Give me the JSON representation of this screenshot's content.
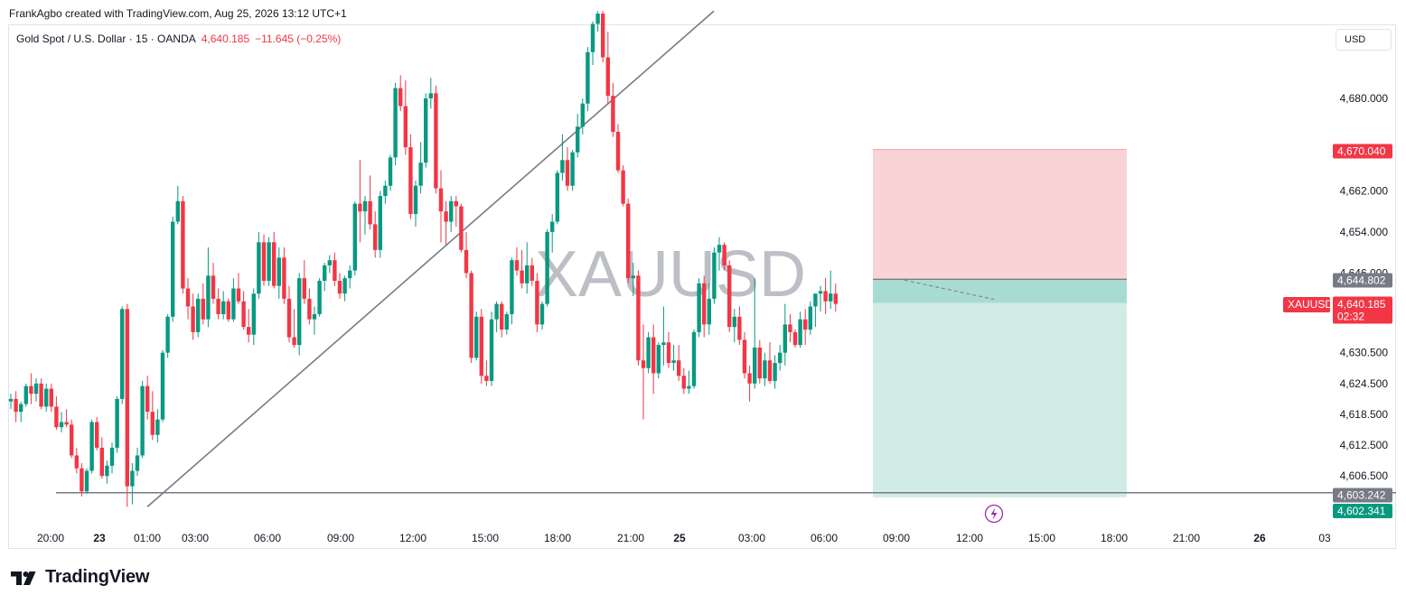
{
  "header": {
    "credit": "FrankAgbo created with TradingView.com, Aug 25, 2026 13:12 UTC+1",
    "symbol": "Gold Spot / U.S. Dollar · 15 · OANDA",
    "last_price": "4,640.185",
    "change": "−11.645 (−0.25%)"
  },
  "currency_button": "USD",
  "watermark": "XAUUSD",
  "brand": "TradingView",
  "colors": {
    "up": "#089981",
    "down": "#f23645",
    "stop_zone": "#f9d3d6",
    "target_zone": "#d1ece6",
    "entry_zone": "#a8dcd1",
    "line": "#787b86"
  },
  "price_labels": {
    "stop": "4,670.040",
    "entry": "4,644.802",
    "current": "4,640.185",
    "countdown": "02:32",
    "symbol_tag": "XAUUSD",
    "support": "4,603.242",
    "target": "4,602.341"
  },
  "chart_data": {
    "type": "candlestick",
    "y_ticks": [
      "4,680.000",
      "4,662.000",
      "4,654.000",
      "4,646.000",
      "4,630.500",
      "4,624.500",
      "4,618.500",
      "4,612.500",
      "4,606.500"
    ],
    "x_ticks": [
      "20:00",
      "23",
      "01:00",
      "03:00",
      "06:00",
      "09:00",
      "12:00",
      "15:00",
      "18:00",
      "21:00",
      "25",
      "03:00",
      "06:00",
      "09:00",
      "12:00",
      "15:00",
      "18:00",
      "21:00",
      "26",
      "03"
    ],
    "bold_x_ticks": [
      "23",
      "25",
      "26"
    ],
    "position": {
      "side": "short",
      "stop": 4670.04,
      "entry": 4644.802,
      "target": 4602.341
    },
    "support_level": 4603.242,
    "trendline": {
      "from": 4600.5,
      "to": 4697.0
    },
    "candles": [
      [
        4621.0,
        4622.5,
        4619.5,
        4621.5
      ],
      [
        4621.5,
        4623.0,
        4617.0,
        4619.0
      ],
      [
        4619.0,
        4621.0,
        4617.0,
        4620.5
      ],
      [
        4620.5,
        4624.5,
        4620.0,
        4624.0
      ],
      [
        4624.0,
        4626.5,
        4620.5,
        4622.5
      ],
      [
        4622.5,
        4625.5,
        4621.0,
        4624.5
      ],
      [
        4624.5,
        4625.5,
        4619.5,
        4620.0
      ],
      [
        4620.0,
        4624.5,
        4619.0,
        4623.5
      ],
      [
        4623.5,
        4624.5,
        4619.0,
        4620.0
      ],
      [
        4620.0,
        4622.0,
        4615.5,
        4616.0
      ],
      [
        4616.0,
        4619.0,
        4615.0,
        4617.0
      ],
      [
        4617.0,
        4619.5,
        4616.0,
        4616.5
      ],
      [
        4616.5,
        4617.5,
        4610.0,
        4610.5
      ],
      [
        4610.5,
        4612.0,
        4607.0,
        4608.0
      ],
      [
        4608.0,
        4609.0,
        4602.5,
        4603.5
      ],
      [
        4603.5,
        4608.0,
        4603.0,
        4607.5
      ],
      [
        4607.5,
        4617.5,
        4607.0,
        4617.0
      ],
      [
        4617.0,
        4618.0,
        4611.5,
        4612.0
      ],
      [
        4612.0,
        4614.0,
        4606.0,
        4606.5
      ],
      [
        4606.5,
        4609.5,
        4605.0,
        4608.5
      ],
      [
        4608.5,
        4613.0,
        4607.0,
        4612.0
      ],
      [
        4612.0,
        4622.0,
        4611.0,
        4621.5
      ],
      [
        4621.5,
        4639.5,
        4620.5,
        4639.0
      ],
      [
        4639.0,
        4640.0,
        4600.5,
        4604.5
      ],
      [
        4604.5,
        4609.0,
        4601.0,
        4607.5
      ],
      [
        4607.5,
        4612.0,
        4606.5,
        4610.5
      ],
      [
        4610.5,
        4625.0,
        4610.0,
        4624.0
      ],
      [
        4624.0,
        4626.0,
        4617.5,
        4619.0
      ],
      [
        4619.0,
        4623.0,
        4613.5,
        4614.5
      ],
      [
        4614.5,
        4619.5,
        4613.0,
        4617.5
      ],
      [
        4617.5,
        4631.0,
        4617.0,
        4630.5
      ],
      [
        4630.5,
        4638.0,
        4629.5,
        4637.5
      ],
      [
        4637.5,
        4657.0,
        4636.5,
        4656.0
      ],
      [
        4656.0,
        4663.0,
        4655.5,
        4660.0
      ],
      [
        4660.0,
        4661.0,
        4642.0,
        4643.0
      ],
      [
        4643.0,
        4645.0,
        4637.0,
        4639.5
      ],
      [
        4639.5,
        4642.0,
        4633.0,
        4634.5
      ],
      [
        4634.5,
        4642.0,
        4633.5,
        4641.0
      ],
      [
        4641.0,
        4644.0,
        4636.0,
        4637.0
      ],
      [
        4637.0,
        4651.0,
        4635.5,
        4645.5
      ],
      [
        4645.5,
        4648.0,
        4640.0,
        4641.0
      ],
      [
        4641.0,
        4643.0,
        4637.0,
        4638.0
      ],
      [
        4638.0,
        4642.5,
        4637.0,
        4640.5
      ],
      [
        4640.5,
        4641.0,
        4636.5,
        4637.0
      ],
      [
        4637.0,
        4645.0,
        4636.5,
        4643.0
      ],
      [
        4643.0,
        4646.0,
        4640.0,
        4640.5
      ],
      [
        4640.5,
        4642.5,
        4635.0,
        4635.5
      ],
      [
        4635.5,
        4639.0,
        4632.5,
        4634.0
      ],
      [
        4634.0,
        4643.0,
        4632.0,
        4642.0
      ],
      [
        4642.0,
        4654.0,
        4641.0,
        4652.0
      ],
      [
        4652.0,
        4653.5,
        4643.5,
        4644.5
      ],
      [
        4644.5,
        4653.0,
        4643.5,
        4652.0
      ],
      [
        4652.0,
        4654.0,
        4643.0,
        4643.5
      ],
      [
        4643.5,
        4651.0,
        4641.0,
        4649.0
      ],
      [
        4649.0,
        4651.0,
        4640.0,
        4641.0
      ],
      [
        4641.0,
        4643.5,
        4632.5,
        4633.5
      ],
      [
        4633.5,
        4639.0,
        4631.5,
        4632.0
      ],
      [
        4632.0,
        4646.0,
        4630.0,
        4645.0
      ],
      [
        4645.0,
        4648.5,
        4640.0,
        4641.0
      ],
      [
        4641.0,
        4643.0,
        4636.0,
        4637.0
      ],
      [
        4637.0,
        4639.5,
        4634.0,
        4638.0
      ],
      [
        4638.0,
        4645.0,
        4637.5,
        4644.5
      ],
      [
        4644.5,
        4648.0,
        4642.5,
        4647.5
      ],
      [
        4647.5,
        4649.5,
        4646.0,
        4648.5
      ],
      [
        4648.5,
        4650.0,
        4643.5,
        4644.5
      ],
      [
        4644.5,
        4646.0,
        4641.0,
        4642.0
      ],
      [
        4642.0,
        4645.5,
        4640.5,
        4645.0
      ],
      [
        4645.0,
        4647.5,
        4643.0,
        4646.5
      ],
      [
        4646.5,
        4660.0,
        4645.5,
        4659.5
      ],
      [
        4659.5,
        4668.0,
        4652.0,
        4658.0
      ],
      [
        4658.0,
        4661.0,
        4653.5,
        4660.0
      ],
      [
        4660.0,
        4665.0,
        4654.5,
        4655.5
      ],
      [
        4655.5,
        4658.0,
        4649.0,
        4650.5
      ],
      [
        4650.5,
        4662.0,
        4649.0,
        4661.0
      ],
      [
        4661.0,
        4664.0,
        4659.5,
        4663.0
      ],
      [
        4663.0,
        4669.0,
        4662.0,
        4668.5
      ],
      [
        4668.5,
        4683.0,
        4667.0,
        4682.0
      ],
      [
        4682.0,
        4684.5,
        4677.5,
        4678.5
      ],
      [
        4678.5,
        4683.5,
        4669.0,
        4670.5
      ],
      [
        4670.5,
        4673.0,
        4656.5,
        4657.5
      ],
      [
        4657.5,
        4664.0,
        4655.0,
        4663.0
      ],
      [
        4663.0,
        4671.5,
        4661.5,
        4667.5
      ],
      [
        4667.5,
        4681.0,
        4666.5,
        4680.0
      ],
      [
        4680.0,
        4684.0,
        4678.0,
        4681.0
      ],
      [
        4681.0,
        4682.5,
        4661.5,
        4662.5
      ],
      [
        4662.5,
        4666.0,
        4652.0,
        4658.0
      ],
      [
        4658.0,
        4660.0,
        4651.5,
        4656.0
      ],
      [
        4656.0,
        4661.0,
        4654.0,
        4660.0
      ],
      [
        4660.0,
        4661.0,
        4655.0,
        4659.0
      ],
      [
        4659.0,
        4659.5,
        4650.0,
        4650.5
      ],
      [
        4650.5,
        4654.0,
        4645.0,
        4646.0
      ],
      [
        4646.0,
        4646.5,
        4628.5,
        4629.5
      ],
      [
        4629.5,
        4638.5,
        4629.0,
        4637.5
      ],
      [
        4637.5,
        4639.0,
        4624.5,
        4626.0
      ],
      [
        4626.0,
        4629.0,
        4624.0,
        4625.0
      ],
      [
        4625.0,
        4638.5,
        4624.0,
        4637.0
      ],
      [
        4637.0,
        4640.5,
        4634.5,
        4640.0
      ],
      [
        4640.0,
        4640.5,
        4633.5,
        4635.0
      ],
      [
        4635.0,
        4638.5,
        4634.0,
        4638.0
      ],
      [
        4638.0,
        4649.0,
        4636.0,
        4648.5
      ],
      [
        4648.5,
        4651.0,
        4645.5,
        4646.5
      ],
      [
        4646.5,
        4650.5,
        4643.0,
        4644.0
      ],
      [
        4644.0,
        4652.0,
        4642.0,
        4647.5
      ],
      [
        4647.5,
        4649.0,
        4643.5,
        4644.5
      ],
      [
        4644.5,
        4646.0,
        4634.5,
        4636.0
      ],
      [
        4636.0,
        4640.5,
        4635.0,
        4640.0
      ],
      [
        4640.0,
        4654.5,
        4639.5,
        4654.0
      ],
      [
        4654.0,
        4657.5,
        4650.0,
        4656.0
      ],
      [
        4656.0,
        4666.0,
        4655.5,
        4665.5
      ],
      [
        4665.5,
        4673.0,
        4664.0,
        4668.0
      ],
      [
        4668.0,
        4670.5,
        4662.0,
        4663.0
      ],
      [
        4663.0,
        4670.0,
        4662.0,
        4669.5
      ],
      [
        4669.5,
        4677.0,
        4668.5,
        4674.5
      ],
      [
        4674.5,
        4680.0,
        4673.0,
        4679.0
      ],
      [
        4679.0,
        4690.0,
        4677.5,
        4689.0
      ],
      [
        4689.0,
        4695.0,
        4686.5,
        4694.5
      ],
      [
        4694.5,
        4697.0,
        4693.0,
        4696.5
      ],
      [
        4696.5,
        4697.0,
        4687.0,
        4688.0
      ],
      [
        4688.0,
        4693.0,
        4679.0,
        4680.5
      ],
      [
        4680.5,
        4683.0,
        4672.5,
        4673.5
      ],
      [
        4673.5,
        4675.0,
        4665.5,
        4666.0
      ],
      [
        4666.0,
        4667.0,
        4659.0,
        4659.5
      ],
      [
        4659.5,
        4660.5,
        4644.0,
        4645.0
      ],
      [
        4645.0,
        4648.0,
        4641.5,
        4645.5
      ],
      [
        4645.5,
        4646.5,
        4628.0,
        4629.0
      ],
      [
        4629.0,
        4636.0,
        4617.5,
        4627.5
      ],
      [
        4627.5,
        4634.5,
        4626.5,
        4633.5
      ],
      [
        4633.5,
        4636.0,
        4622.5,
        4626.5
      ],
      [
        4626.5,
        4632.5,
        4625.5,
        4632.0
      ],
      [
        4632.0,
        4639.5,
        4628.0,
        4632.5
      ],
      [
        4632.5,
        4634.5,
        4627.5,
        4628.5
      ],
      [
        4628.5,
        4632.0,
        4627.0,
        4629.0
      ],
      [
        4629.0,
        4632.0,
        4625.0,
        4626.0
      ],
      [
        4626.0,
        4627.5,
        4622.5,
        4623.5
      ],
      [
        4623.5,
        4627.0,
        4622.5,
        4624.0
      ],
      [
        4624.0,
        4635.0,
        4623.5,
        4634.5
      ],
      [
        4634.5,
        4645.0,
        4633.5,
        4644.0
      ],
      [
        4644.0,
        4645.5,
        4633.5,
        4636.0
      ],
      [
        4636.0,
        4644.0,
        4634.0,
        4641.0
      ],
      [
        4641.0,
        4651.0,
        4640.0,
        4650.0
      ],
      [
        4650.0,
        4653.0,
        4646.5,
        4651.5
      ],
      [
        4651.5,
        4652.0,
        4646.5,
        4647.5
      ],
      [
        4647.5,
        4648.5,
        4634.5,
        4635.5
      ],
      [
        4635.5,
        4639.0,
        4632.5,
        4637.5
      ],
      [
        4637.5,
        4639.5,
        4632.0,
        4633.0
      ],
      [
        4633.0,
        4634.5,
        4625.5,
        4626.5
      ],
      [
        4626.5,
        4628.0,
        4621.0,
        4624.5
      ],
      [
        4624.5,
        4645.0,
        4623.5,
        4631.5
      ],
      [
        4631.5,
        4633.0,
        4624.5,
        4625.5
      ],
      [
        4625.5,
        4630.5,
        4624.0,
        4629.0
      ],
      [
        4629.0,
        4632.5,
        4624.5,
        4625.0
      ],
      [
        4625.0,
        4630.0,
        4623.5,
        4628.5
      ],
      [
        4628.5,
        4632.0,
        4627.0,
        4630.5
      ],
      [
        4630.5,
        4640.0,
        4628.0,
        4636.0
      ],
      [
        4636.0,
        4638.0,
        4632.5,
        4634.5
      ],
      [
        4634.5,
        4635.0,
        4631.5,
        4632.0
      ],
      [
        4632.0,
        4638.5,
        4631.5,
        4637.0
      ],
      [
        4637.0,
        4639.0,
        4632.0,
        4635.0
      ],
      [
        4635.0,
        4640.5,
        4634.0,
        4639.5
      ],
      [
        4639.5,
        4642.0,
        4635.5,
        4642.0
      ],
      [
        4642.0,
        4643.5,
        4638.5,
        4642.5
      ],
      [
        4642.5,
        4645.0,
        4638.0,
        4640.5
      ],
      [
        4640.5,
        4646.5,
        4639.0,
        4642.0
      ],
      [
        4642.0,
        4644.0,
        4638.5,
        4640.0
      ]
    ]
  }
}
